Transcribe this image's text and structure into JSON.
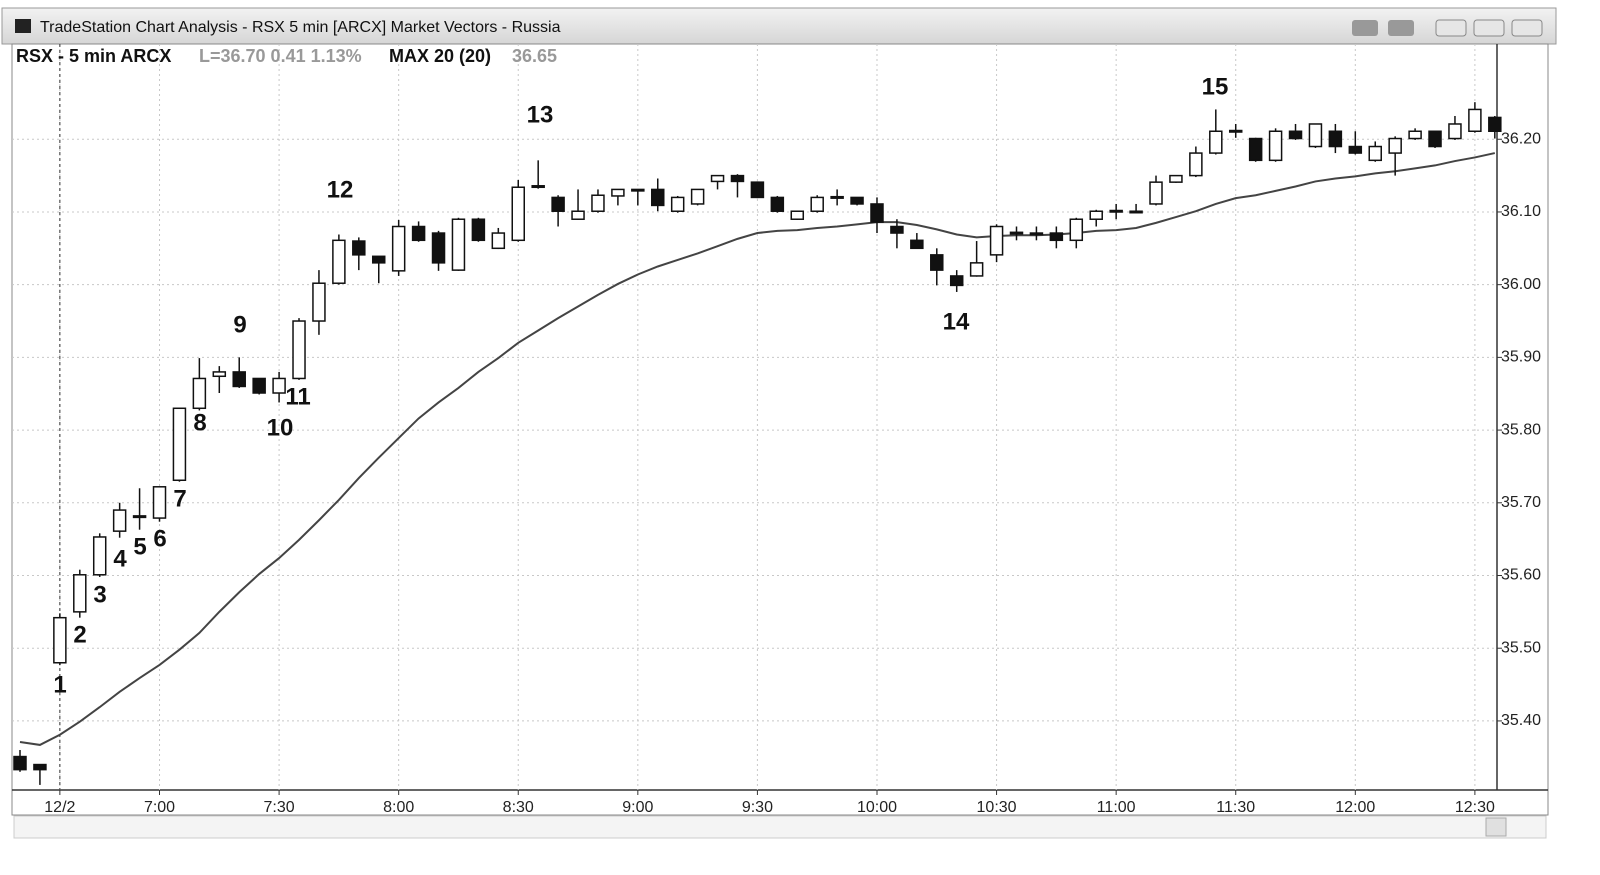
{
  "window": {
    "title": "TradeStation Chart Analysis - RSX 5 min [ARCX] Market Vectors - Russia"
  },
  "chart_data": {
    "type": "candlestick",
    "title": "RSX - 5 min ARCX",
    "last": "L=36.70 0.41 1.13%",
    "indicator": "MAX 20 (20)",
    "indicator_value": "36.65",
    "up_color": "#ffffff",
    "down_color": "#111111",
    "line_color": "#444444",
    "grid": true,
    "categories": [
      null,
      null,
      "12/2",
      null,
      null,
      null,
      null,
      "7:00",
      null,
      null,
      null,
      null,
      null,
      "7:30",
      null,
      null,
      null,
      null,
      null,
      "8:00",
      null,
      null,
      null,
      null,
      null,
      "8:30",
      null,
      null,
      null,
      null,
      null,
      "9:00",
      null,
      null,
      null,
      null,
      null,
      "9:30",
      null,
      null,
      null,
      null,
      null,
      "10:00",
      null,
      null,
      null,
      null,
      null,
      "10:30",
      null,
      null,
      null,
      null,
      null,
      "11:00",
      null,
      null,
      null,
      null,
      null,
      "11:30",
      null,
      null,
      null,
      null,
      null,
      "12:00",
      null,
      null,
      null,
      null,
      null,
      "12:30",
      null
    ],
    "open": [
      35.351,
      35.34,
      35.48,
      35.55,
      35.601,
      35.661,
      35.68,
      35.679,
      35.731,
      35.83,
      35.874,
      35.88,
      35.871,
      35.851,
      35.871,
      35.95,
      36.002,
      36.06,
      36.039,
      36.019,
      36.08,
      36.071,
      36.02,
      36.09,
      36.05,
      36.061,
      36.134,
      36.12,
      36.09,
      36.101,
      36.122,
      36.13,
      36.131,
      36.101,
      36.111,
      36.142,
      36.15,
      36.141,
      36.12,
      36.09,
      36.101,
      36.12,
      36.12,
      36.111,
      36.08,
      36.061,
      36.041,
      36.012,
      36.012,
      36.041,
      36.071,
      36.071,
      36.071,
      36.061,
      36.09,
      36.101,
      36.101,
      36.111,
      36.141,
      36.15,
      36.181,
      36.211,
      36.201,
      36.171,
      36.211,
      36.19,
      36.211,
      36.19,
      36.171,
      36.181,
      36.201,
      36.211,
      36.201,
      36.211,
      36.23
    ],
    "high": [
      35.36,
      35.34,
      35.548,
      35.608,
      35.658,
      35.7,
      35.72,
      35.722,
      35.83,
      35.899,
      35.888,
      35.9,
      35.871,
      35.88,
      35.954,
      36.02,
      36.069,
      36.065,
      36.039,
      36.089,
      36.087,
      36.074,
      36.092,
      36.092,
      36.078,
      36.144,
      36.171,
      36.123,
      36.131,
      36.131,
      36.131,
      36.131,
      36.146,
      36.122,
      36.131,
      36.15,
      36.152,
      36.142,
      36.122,
      36.101,
      36.123,
      36.131,
      36.12,
      36.12,
      36.09,
      36.071,
      36.05,
      36.02,
      36.06,
      36.083,
      36.08,
      36.08,
      36.08,
      36.092,
      36.103,
      36.111,
      36.111,
      36.15,
      36.15,
      36.19,
      36.241,
      36.221,
      36.202,
      36.215,
      36.221,
      36.221,
      36.221,
      36.211,
      36.197,
      36.204,
      36.215,
      36.212,
      36.232,
      36.251,
      36.232
    ],
    "low": [
      35.33,
      35.312,
      35.477,
      35.542,
      35.598,
      35.652,
      35.663,
      35.674,
      35.729,
      35.827,
      35.851,
      35.858,
      35.849,
      35.838,
      35.869,
      35.931,
      36.0,
      36.02,
      36.002,
      36.012,
      36.059,
      36.019,
      36.019,
      36.059,
      36.049,
      36.059,
      36.132,
      36.08,
      36.089,
      36.099,
      36.109,
      36.109,
      36.101,
      36.099,
      36.109,
      36.131,
      36.12,
      36.119,
      36.099,
      36.089,
      36.099,
      36.109,
      36.109,
      36.071,
      36.05,
      36.05,
      35.999,
      35.99,
      36.011,
      36.031,
      36.061,
      36.061,
      36.05,
      36.05,
      36.08,
      36.09,
      36.099,
      36.109,
      36.14,
      36.148,
      36.179,
      36.202,
      36.169,
      36.169,
      36.199,
      36.188,
      36.181,
      36.179,
      36.169,
      36.15,
      36.199,
      36.188,
      36.199,
      36.209,
      36.201
    ],
    "close": [
      35.333,
      35.333,
      35.542,
      35.601,
      35.653,
      35.69,
      35.682,
      35.722,
      35.83,
      35.871,
      35.88,
      35.86,
      35.851,
      35.871,
      35.95,
      36.002,
      36.061,
      36.041,
      36.03,
      36.08,
      36.061,
      36.03,
      36.09,
      36.061,
      36.071,
      36.134,
      36.136,
      36.101,
      36.101,
      36.123,
      36.131,
      36.131,
      36.109,
      36.12,
      36.131,
      36.15,
      36.142,
      36.12,
      36.101,
      36.101,
      36.12,
      36.121,
      36.111,
      36.086,
      36.071,
      36.05,
      36.02,
      35.999,
      36.03,
      36.08,
      36.072,
      36.07,
      36.061,
      36.09,
      36.101,
      36.102,
      36.1,
      36.141,
      36.15,
      36.181,
      36.211,
      36.212,
      36.171,
      36.211,
      36.201,
      36.221,
      36.19,
      36.181,
      36.19,
      36.201,
      36.211,
      36.19,
      36.221,
      36.241,
      36.211
    ],
    "moving_average": [
      35.371,
      35.367,
      35.381,
      35.399,
      35.419,
      35.44,
      35.459,
      35.477,
      35.498,
      35.521,
      35.55,
      35.577,
      35.602,
      35.624,
      35.649,
      35.676,
      35.704,
      35.734,
      35.762,
      35.789,
      35.816,
      35.838,
      35.858,
      35.88,
      35.899,
      35.92,
      35.937,
      35.954,
      35.97,
      35.986,
      36.001,
      36.014,
      36.025,
      36.034,
      36.043,
      36.053,
      36.063,
      36.071,
      36.074,
      36.075,
      36.078,
      36.08,
      36.083,
      36.086,
      36.086,
      36.082,
      36.076,
      36.069,
      36.065,
      36.067,
      36.068,
      36.068,
      36.069,
      36.071,
      36.074,
      36.075,
      36.078,
      36.085,
      36.093,
      36.101,
      36.111,
      36.119,
      36.123,
      36.129,
      36.135,
      36.142,
      36.146,
      36.149,
      36.153,
      36.156,
      36.16,
      36.164,
      36.17,
      36.175,
      36.181
    ],
    "ylim": [
      35.305,
      36.331
    ],
    "yticks": [
      {
        "value": 35.4,
        "label": "35.40"
      },
      {
        "value": 35.5,
        "label": "35.50"
      },
      {
        "value": 35.6,
        "label": "35.60"
      },
      {
        "value": 35.7,
        "label": "35.70"
      },
      {
        "value": 35.8,
        "label": "35.80"
      },
      {
        "value": 35.9,
        "label": "35.90"
      },
      {
        "value": 36.0,
        "label": "36.00"
      },
      {
        "value": 36.1,
        "label": "36.10"
      },
      {
        "value": 36.2,
        "label": "36.20"
      }
    ],
    "annotations": [
      "1",
      "2",
      "3",
      "4",
      "5",
      "6",
      "7",
      "8",
      "9",
      "10",
      "11",
      "12",
      "13",
      "14",
      "15"
    ]
  }
}
